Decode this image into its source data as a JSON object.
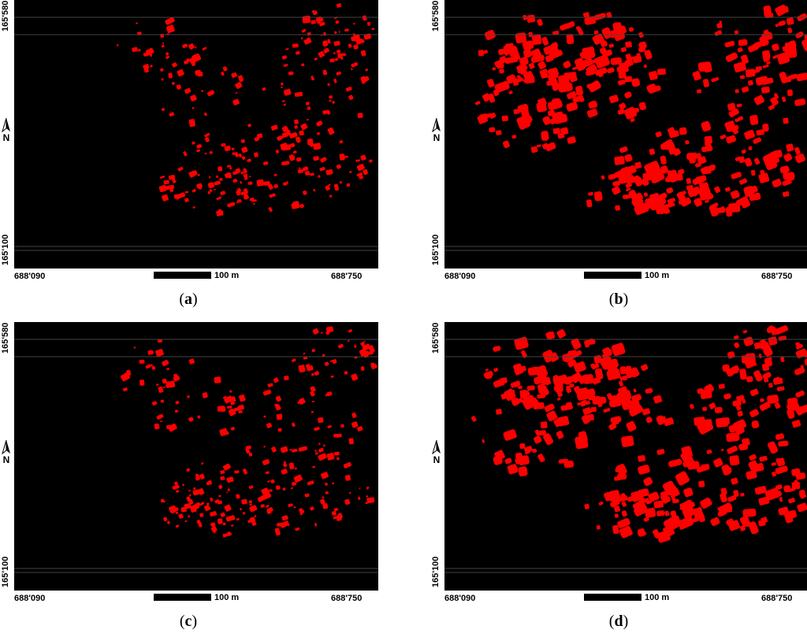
{
  "panels": [
    {
      "letter": "a",
      "caption_open": "(",
      "caption_close": ")",
      "density": "low"
    },
    {
      "letter": "b",
      "caption_open": "(",
      "caption_close": ")",
      "density": "high"
    },
    {
      "letter": "c",
      "caption_open": "(",
      "caption_close": ")",
      "density": "low"
    },
    {
      "letter": "d",
      "caption_open": "(",
      "caption_close": ")",
      "density": "high"
    }
  ],
  "axes": {
    "y_top": "165'580",
    "y_bottom": "165'100",
    "x_left": "688'090",
    "x_right": "688'750"
  },
  "scale": {
    "label": "100 m"
  },
  "north": {
    "label": "N"
  },
  "colors": {
    "building": "#ff0000",
    "background": "#000000"
  }
}
